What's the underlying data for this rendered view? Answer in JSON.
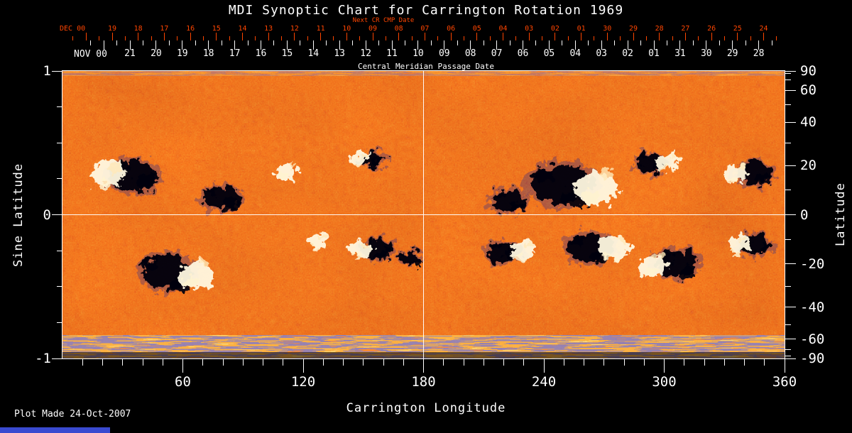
{
  "title": "MDI Synoptic Chart for Carrington Rotation 1969",
  "colors": {
    "background": "#000000",
    "axis_red": "#ff4500",
    "axis_white": "#ffffff",
    "footer_bar_blue": "#3a4ad0",
    "magnetogram_base_orange": "#e8400c",
    "negative_field": "#05020d",
    "positive_field": "#fff8e0"
  },
  "top_axis_red": {
    "month_label": "DEC 00",
    "sublabel": "Next CR CMP Date",
    "ticks": [
      "19",
      "18",
      "17",
      "16",
      "15",
      "14",
      "13",
      "12",
      "11",
      "10",
      "09",
      "08",
      "07",
      "06",
      "05",
      "04",
      "03",
      "02",
      "01",
      "30",
      "29",
      "28",
      "27",
      "26",
      "25",
      "24"
    ]
  },
  "top_axis_white": {
    "month_label": "NOV 00",
    "axis_title": "Central Meridian Passage Date",
    "ticks": [
      "21",
      "20",
      "19",
      "18",
      "17",
      "16",
      "15",
      "14",
      "13",
      "12",
      "11",
      "10",
      "09",
      "08",
      "07",
      "06",
      "05",
      "04",
      "03",
      "02",
      "01",
      "31",
      "30",
      "29",
      "28"
    ]
  },
  "left_axis": {
    "title": "Sine Latitude",
    "ticks": [
      "1",
      "0",
      "-1"
    ]
  },
  "right_axis": {
    "title": "Latitude",
    "ticks": [
      "90",
      "60",
      "40",
      "20",
      "0",
      "-20",
      "-40",
      "-60",
      "-90"
    ]
  },
  "bottom_axis": {
    "title": "Carrington Longitude",
    "ticks": [
      "60",
      "120",
      "180",
      "240",
      "300",
      "360"
    ]
  },
  "footer": {
    "plot_made": "Plot Made 24-Oct-2007"
  },
  "chart_data": {
    "type": "heatmap",
    "title": "MDI Synoptic Chart for Carrington Rotation 1969",
    "xlabel": "Carrington Longitude",
    "ylabel_left": "Sine Latitude",
    "ylabel_right": "Latitude",
    "x_range": [
      0,
      360
    ],
    "x_ticks": [
      60,
      120,
      180,
      240,
      300,
      360
    ],
    "x_minor_tick_step_deg": 10,
    "y_range_sine_latitude": [
      -1,
      1
    ],
    "left_y_ticks": [
      1,
      0,
      -1
    ],
    "left_y_minor_ticks": [
      0.75,
      0.5,
      0.25,
      -0.25,
      -0.5,
      -0.75
    ],
    "right_y_ticks_latitude_deg": [
      90,
      60,
      40,
      20,
      0,
      -20,
      -40,
      -60,
      -90
    ],
    "right_y_minor_ticks_latitude_deg": [
      80,
      70,
      50,
      30,
      10,
      -10,
      -30,
      -50,
      -70,
      -80
    ],
    "gridlines": {
      "x_longitude": [
        180
      ],
      "y_sine_latitude": [
        0
      ]
    },
    "legend_position": "none",
    "top_axis_next_cr_cmp_dates": {
      "month": "DEC 00",
      "days": [
        19,
        18,
        17,
        16,
        15,
        14,
        13,
        12,
        11,
        10,
        9,
        8,
        7,
        6,
        5,
        4,
        3,
        2,
        1,
        30,
        29,
        28,
        27,
        26,
        25,
        24
      ]
    },
    "top_axis_cmp_dates": {
      "month": "NOV 00",
      "days": [
        21,
        20,
        19,
        18,
        17,
        16,
        15,
        14,
        13,
        12,
        11,
        10,
        9,
        8,
        7,
        6,
        5,
        4,
        3,
        2,
        1,
        31,
        30,
        29,
        28
      ]
    },
    "colormap_description": "mottled orange-red quiet sun; white patches = positive magnetic flux; black / dark-blue patches = negative magnetic flux; noisy striped band at south polar edge",
    "active_regions": [
      {
        "lon": 30,
        "sine_lat": 0.27,
        "polarity": "bipolar",
        "size": 34,
        "white_side": "left"
      },
      {
        "lon": 79,
        "sine_lat": 0.12,
        "polarity": "negative",
        "size": 26
      },
      {
        "lon": 112,
        "sine_lat": 0.31,
        "polarity": "positive",
        "size": 22
      },
      {
        "lon": 152,
        "sine_lat": 0.39,
        "polarity": "bipolar",
        "size": 17,
        "white_side": "left"
      },
      {
        "lon": 222,
        "sine_lat": 0.1,
        "polarity": "negative",
        "size": 24
      },
      {
        "lon": 256,
        "sine_lat": 0.21,
        "polarity": "bipolar",
        "size": 44,
        "white_side": "right"
      },
      {
        "lon": 297,
        "sine_lat": 0.36,
        "polarity": "bipolar",
        "size": 22,
        "white_side": "right"
      },
      {
        "lon": 341,
        "sine_lat": 0.29,
        "polarity": "bipolar",
        "size": 24,
        "white_side": "left"
      },
      {
        "lon": 58,
        "sine_lat": -0.4,
        "polarity": "bipolar",
        "size": 36,
        "white_side": "right"
      },
      {
        "lon": 128,
        "sine_lat": -0.19,
        "polarity": "positive",
        "size": 20
      },
      {
        "lon": 153,
        "sine_lat": -0.24,
        "polarity": "bipolar",
        "size": 22,
        "white_side": "left"
      },
      {
        "lon": 173,
        "sine_lat": -0.3,
        "polarity": "negative",
        "size": 16
      },
      {
        "lon": 224,
        "sine_lat": -0.26,
        "polarity": "bipolar",
        "size": 24,
        "white_side": "right"
      },
      {
        "lon": 268,
        "sine_lat": -0.23,
        "polarity": "bipolar",
        "size": 32,
        "white_side": "right"
      },
      {
        "lon": 301,
        "sine_lat": -0.34,
        "polarity": "bipolar",
        "size": 30,
        "white_side": "left"
      },
      {
        "lon": 342,
        "sine_lat": -0.21,
        "polarity": "bipolar",
        "size": 22,
        "white_side": "left"
      }
    ],
    "annotations": [
      "Next CR CMP Date",
      "Central Meridian Passage Date",
      "Plot Made 24-Oct-2007"
    ]
  }
}
